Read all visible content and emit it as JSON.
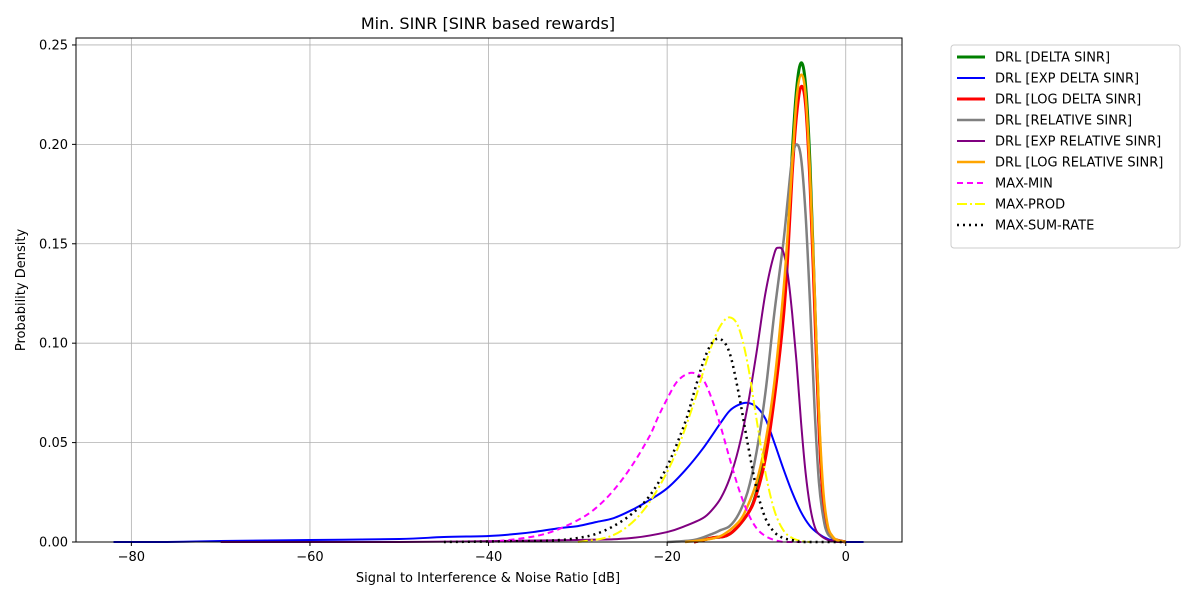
{
  "chart_data": {
    "type": "line",
    "title": "Min. SINR [SINR based rewards]",
    "xlabel": "Signal to Interference & Noise Ratio [dB]",
    "ylabel": "Probability Density",
    "xlim": [
      -86.2,
      6.3
    ],
    "ylim": [
      0,
      0.2535
    ],
    "xticks": [
      -80,
      -60,
      -40,
      -20,
      0
    ],
    "yticks": [
      0.0,
      0.05,
      0.1,
      0.15,
      0.2,
      0.25
    ],
    "xtick_labels": [
      "−80",
      "−60",
      "−40",
      "−20",
      "0"
    ],
    "ytick_labels": [
      "0.00",
      "0.05",
      "0.10",
      "0.15",
      "0.20",
      "0.25"
    ],
    "grid": true,
    "legend_position": "outside upper right",
    "series": [
      {
        "name": "DRL [DELTA SINR]",
        "color": "#008000",
        "width": 3,
        "dash": "solid",
        "x": [
          -17,
          -15,
          -13,
          -11,
          -10,
          -9,
          -8,
          -7,
          -6.5,
          -6,
          -5.5,
          -5,
          -4.5,
          -4,
          -3.5,
          -3,
          -2.5,
          -2,
          -1.5,
          -1,
          0
        ],
        "y": [
          0,
          0.002,
          0.004,
          0.014,
          0.025,
          0.045,
          0.075,
          0.12,
          0.15,
          0.195,
          0.228,
          0.241,
          0.23,
          0.19,
          0.125,
          0.06,
          0.02,
          0.006,
          0.002,
          0.001,
          0
        ]
      },
      {
        "name": "DRL [EXP DELTA SINR]",
        "color": "#0000ff",
        "width": 2,
        "dash": "solid",
        "x": [
          -82,
          -76,
          -70,
          -60,
          -50,
          -45,
          -40,
          -37,
          -35,
          -32,
          -30,
          -28,
          -26,
          -24,
          -22,
          -20,
          -18,
          -16,
          -14,
          -13,
          -12,
          -11,
          -10,
          -9,
          -8,
          -7,
          -6,
          -5,
          -4,
          -3,
          -2,
          -1,
          0,
          1,
          2
        ],
        "y": [
          0,
          0,
          0.0005,
          0.001,
          0.0015,
          0.0025,
          0.003,
          0.004,
          0.005,
          0.007,
          0.008,
          0.01,
          0.012,
          0.016,
          0.021,
          0.027,
          0.036,
          0.047,
          0.06,
          0.066,
          0.069,
          0.07,
          0.068,
          0.062,
          0.05,
          0.037,
          0.025,
          0.015,
          0.008,
          0.004,
          0.0015,
          0.0005,
          0,
          0,
          0
        ]
      },
      {
        "name": "DRL [LOG DELTA SINR]",
        "color": "#ff0000",
        "width": 3,
        "dash": "solid",
        "x": [
          -17,
          -15,
          -13,
          -11,
          -10,
          -9,
          -8,
          -7,
          -6.5,
          -6,
          -5.5,
          -5,
          -4.5,
          -4,
          -3.5,
          -3,
          -2.5,
          -2,
          -1.5,
          -1,
          0
        ],
        "y": [
          0,
          0.002,
          0.004,
          0.014,
          0.024,
          0.042,
          0.072,
          0.112,
          0.143,
          0.185,
          0.215,
          0.229,
          0.22,
          0.18,
          0.12,
          0.058,
          0.02,
          0.006,
          0.002,
          0.001,
          0
        ]
      },
      {
        "name": "DRL [RELATIVE SINR]",
        "color": "#808080",
        "width": 2.5,
        "dash": "solid",
        "x": [
          -20,
          -17,
          -15,
          -14,
          -13,
          -12,
          -11,
          -10,
          -9,
          -8,
          -7,
          -6.5,
          -6,
          -5.5,
          -5,
          -4.5,
          -4,
          -3.5,
          -3,
          -2.5,
          -2,
          -1,
          0
        ],
        "y": [
          0,
          0.001,
          0.004,
          0.006,
          0.008,
          0.014,
          0.025,
          0.045,
          0.075,
          0.115,
          0.15,
          0.172,
          0.193,
          0.2,
          0.193,
          0.165,
          0.12,
          0.068,
          0.03,
          0.012,
          0.004,
          0.001,
          0
        ]
      },
      {
        "name": "DRL [EXP RELATIVE SINR]",
        "color": "#800080",
        "width": 2,
        "dash": "solid",
        "x": [
          -70,
          -50,
          -30,
          -24,
          -20,
          -18,
          -16,
          -15,
          -14,
          -13,
          -12,
          -11,
          -10,
          -9,
          -8,
          -7.5,
          -7,
          -6.5,
          -6,
          -5.5,
          -5,
          -4.5,
          -4,
          -3.5,
          -3,
          -2,
          -1,
          0
        ],
        "y": [
          0,
          0,
          0.001,
          0.002,
          0.005,
          0.008,
          0.012,
          0.016,
          0.022,
          0.032,
          0.047,
          0.068,
          0.095,
          0.125,
          0.145,
          0.148,
          0.146,
          0.135,
          0.115,
          0.09,
          0.06,
          0.035,
          0.018,
          0.008,
          0.004,
          0.001,
          0,
          0
        ]
      },
      {
        "name": "DRL [LOG RELATIVE SINR]",
        "color": "#ffa500",
        "width": 2.5,
        "dash": "solid",
        "x": [
          -18,
          -16,
          -14,
          -12,
          -11,
          -10,
          -9,
          -8,
          -7,
          -6.5,
          -6,
          -5.5,
          -5,
          -4.5,
          -4,
          -3.5,
          -3,
          -2.5,
          -2,
          -1.5,
          -1,
          0
        ],
        "y": [
          0,
          0.001,
          0.003,
          0.01,
          0.018,
          0.03,
          0.05,
          0.08,
          0.125,
          0.155,
          0.19,
          0.223,
          0.235,
          0.225,
          0.185,
          0.128,
          0.065,
          0.025,
          0.008,
          0.003,
          0.001,
          0
        ]
      },
      {
        "name": "MAX-MIN",
        "color": "#ff00ff",
        "width": 2,
        "dash": "6,4",
        "x": [
          -40,
          -36,
          -33,
          -30,
          -28,
          -26,
          -24,
          -22,
          -21,
          -20,
          -19,
          -18,
          -17,
          -16,
          -15,
          -14,
          -13,
          -12,
          -11,
          -10,
          -9,
          -8,
          -7,
          -6,
          -5
        ],
        "y": [
          0,
          0.002,
          0.005,
          0.011,
          0.017,
          0.026,
          0.038,
          0.053,
          0.063,
          0.072,
          0.08,
          0.084,
          0.085,
          0.082,
          0.072,
          0.058,
          0.042,
          0.027,
          0.015,
          0.007,
          0.003,
          0.001,
          0,
          0,
          0
        ]
      },
      {
        "name": "MAX-PROD",
        "color": "#ffff00",
        "width": 2,
        "dash": "10,3,2,3",
        "x": [
          -30,
          -27,
          -25,
          -23,
          -21,
          -19,
          -17,
          -16,
          -15,
          -14,
          -13,
          -12,
          -11,
          -10,
          -9,
          -8,
          -7,
          -6,
          -5,
          -4
        ],
        "y": [
          0,
          0.002,
          0.006,
          0.014,
          0.027,
          0.045,
          0.07,
          0.085,
          0.099,
          0.109,
          0.113,
          0.108,
          0.09,
          0.062,
          0.035,
          0.016,
          0.006,
          0.002,
          0.0005,
          0
        ]
      },
      {
        "name": "MAX-SUM-RATE",
        "color": "#000000",
        "width": 2.5,
        "dash": "2,4",
        "x": [
          -45,
          -35,
          -32,
          -30,
          -28,
          -26,
          -24,
          -22,
          -20,
          -18,
          -17,
          -16,
          -15,
          -14,
          -13,
          -12,
          -11,
          -10,
          -9,
          -8,
          -7,
          -6,
          -5,
          -3,
          0
        ],
        "y": [
          0,
          0.0005,
          0.001,
          0.002,
          0.004,
          0.008,
          0.014,
          0.023,
          0.038,
          0.06,
          0.075,
          0.09,
          0.1,
          0.102,
          0.095,
          0.075,
          0.05,
          0.027,
          0.012,
          0.005,
          0.002,
          0.001,
          0,
          0,
          0
        ]
      }
    ]
  }
}
